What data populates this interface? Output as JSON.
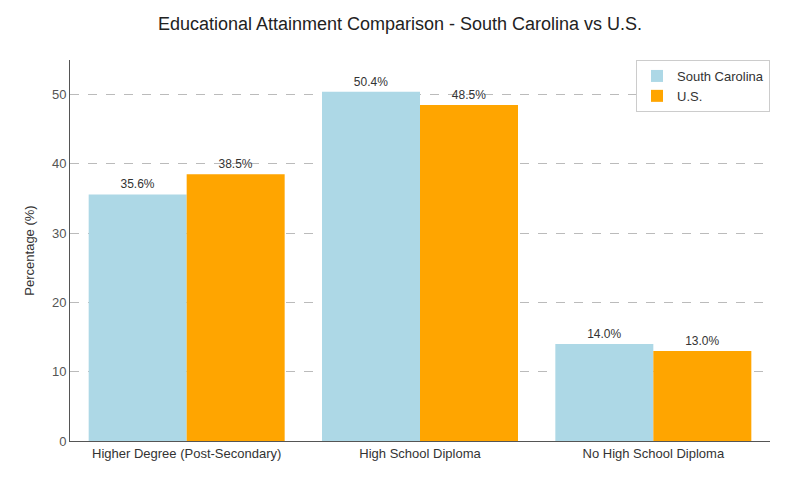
{
  "chart_data": {
    "type": "bar",
    "title": "Educational Attainment Comparison - South Carolina vs U.S.",
    "categories": [
      "Higher Degree (Post-Secondary)",
      "High School Diploma",
      "No High School Diploma"
    ],
    "series": [
      {
        "name": "South Carolina",
        "color": "#add8e6",
        "values": [
          35.6,
          50.4,
          14.0
        ],
        "value_labels": [
          "35.6%",
          "50.4%",
          "14.0%"
        ]
      },
      {
        "name": "U.S.",
        "color": "#FFA500",
        "values": [
          38.5,
          48.5,
          13.0
        ],
        "value_labels": [
          "38.5%",
          "48.5%",
          "13.0%"
        ]
      }
    ],
    "ylabel": "Percentage (%)",
    "ylim": [
      0,
      55
    ],
    "yticks": [
      0,
      10,
      20,
      30,
      40,
      50
    ],
    "grid": true,
    "legend": "upper right",
    "data_labels": true
  }
}
